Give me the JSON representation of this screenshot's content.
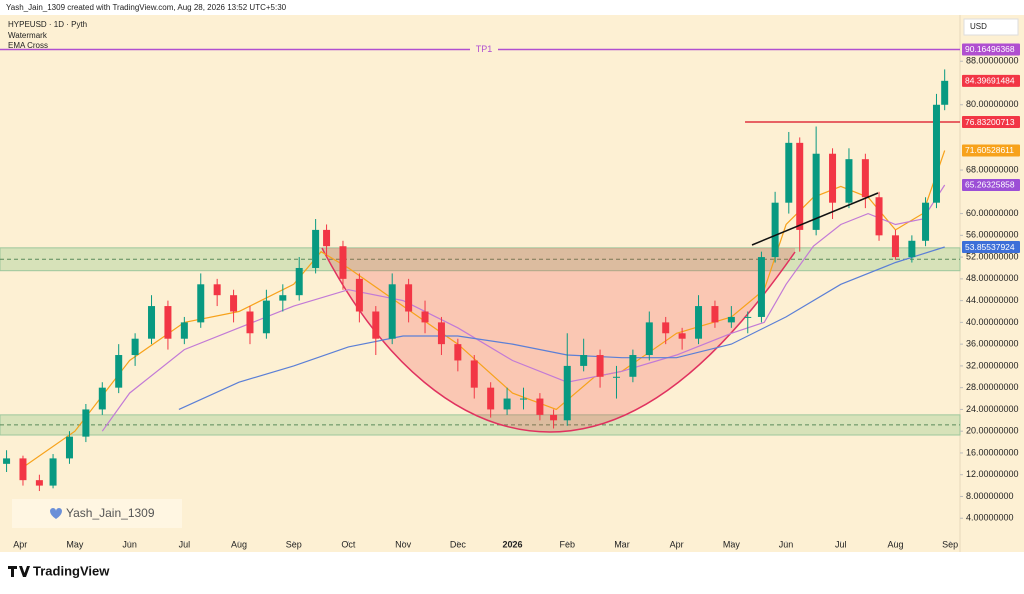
{
  "header": {
    "credit": "Yash_Jain_1309 created with TradingView.com, Aug 28, 2026 13:52 UTC+5:30",
    "symbol": "HYPEUSD · 1D · Pyth",
    "indicators": [
      "Watermark",
      "EMA Cross"
    ],
    "currency": "USD",
    "watermark": "Yash_Jain_1309",
    "brand": "TradingView"
  },
  "chart_data": {
    "type": "candlestick",
    "x": [
      -0.25,
      0.05,
      0.35,
      0.6,
      0.9,
      1.2,
      1.5,
      1.8,
      2.1,
      2.4,
      2.7,
      3.0,
      3.3,
      3.6,
      3.9,
      4.2,
      4.5,
      4.8,
      5.1,
      5.4,
      5.6,
      5.9,
      6.2,
      6.5,
      6.8,
      7.1,
      7.4,
      7.7,
      8.0,
      8.3,
      8.6,
      8.9,
      9.2,
      9.5,
      9.75,
      10.0,
      10.3,
      10.6,
      10.9,
      11.2,
      11.5,
      11.8,
      12.1,
      12.4,
      12.7,
      13.0,
      13.3,
      13.55,
      13.8,
      14.05,
      14.25,
      14.55,
      14.85,
      15.15,
      15.45,
      15.7,
      16.0,
      16.3,
      16.55,
      16.75,
      16.9
    ],
    "open": [
      14,
      15,
      11,
      10,
      15,
      19,
      24,
      28,
      34,
      37,
      43,
      37,
      40,
      47,
      45,
      42,
      38,
      44,
      45,
      50,
      57,
      54,
      48,
      42,
      37,
      47,
      42,
      40,
      36,
      33,
      28,
      24,
      26,
      26,
      23,
      22,
      32,
      34,
      30,
      30,
      34,
      40,
      38,
      37,
      43,
      40,
      41,
      41,
      52,
      62,
      73,
      57,
      71,
      62,
      70,
      63,
      56,
      52,
      55,
      62,
      80
    ],
    "high": [
      16.5,
      15.5,
      12,
      15.8,
      20,
      25,
      29,
      36,
      38,
      45,
      44,
      41,
      49,
      48,
      46,
      43,
      46,
      47,
      52,
      59,
      58,
      55,
      49,
      43,
      49,
      48,
      44,
      41,
      37,
      34,
      29,
      28,
      28,
      27,
      24,
      38,
      37,
      35,
      32,
      35,
      42,
      41,
      39,
      45,
      44,
      43,
      42,
      53,
      64,
      75,
      74,
      76,
      72,
      72,
      71,
      64,
      57,
      56,
      63,
      82,
      86.5
    ],
    "low": [
      12.5,
      10,
      9,
      9.5,
      14,
      18,
      23,
      27,
      32,
      36,
      35,
      36,
      39,
      43,
      40,
      36,
      37,
      42,
      44,
      49,
      52,
      46,
      40,
      34,
      36,
      40,
      38,
      34,
      31,
      26,
      22.5,
      23,
      24,
      22,
      20.5,
      21,
      31,
      28,
      26,
      29,
      33,
      36,
      35,
      36,
      39,
      39,
      38,
      40,
      51,
      60,
      53,
      56,
      59,
      61,
      61,
      55,
      51.5,
      51,
      54,
      61,
      79
    ],
    "close": [
      15,
      11,
      10,
      15,
      19,
      24,
      28,
      34,
      37,
      43,
      37,
      40,
      47,
      45,
      42,
      38,
      44,
      45,
      50,
      57,
      54,
      48,
      42,
      37,
      47,
      42,
      40,
      36,
      33,
      28,
      24,
      26,
      26,
      23,
      22,
      32,
      34,
      30,
      30,
      34,
      40,
      38,
      37,
      43,
      40,
      41,
      41,
      52,
      62,
      73,
      57,
      71,
      62,
      70,
      63,
      56,
      52,
      55,
      62,
      80,
      84.4
    ],
    "up_color": "#089981",
    "down_color": "#f23645",
    "lines": [
      {
        "color": "#f7a21b",
        "x": [
          0,
          1,
          2,
          3,
          4,
          5,
          5.5,
          6,
          7,
          8,
          9,
          9.8,
          10.5,
          11,
          12,
          13,
          13.6,
          14,
          14.5,
          15,
          15.5,
          16,
          16.5,
          16.9
        ],
        "values": [
          13,
          20,
          33,
          40,
          42,
          47,
          53,
          50,
          43,
          36,
          27,
          24,
          30,
          31,
          38,
          41,
          46,
          58,
          63,
          65,
          63,
          57,
          60,
          71.6
        ]
      },
      {
        "color": "#c27ad6",
        "x": [
          1.5,
          2,
          3,
          4,
          5,
          6,
          7,
          8,
          9,
          10,
          11,
          12,
          13,
          13.6,
          14,
          14.5,
          15,
          15.5,
          16,
          16.5,
          16.9
        ],
        "values": [
          20,
          27,
          35,
          39,
          43,
          46,
          44,
          39,
          33,
          29,
          31,
          34,
          38,
          40,
          47,
          54,
          58,
          60,
          58,
          59,
          65.26
        ]
      },
      {
        "color": "#5b7fd6",
        "x": [
          2.9,
          4,
          5,
          6,
          7,
          8,
          9,
          10,
          11,
          12,
          13,
          14,
          15,
          16,
          16.9
        ],
        "values": [
          24,
          29,
          32,
          35.5,
          37.5,
          37.5,
          36,
          34,
          33.5,
          33.5,
          36,
          41,
          47,
          51,
          53.86
        ]
      }
    ],
    "zones": [
      {
        "low": 49.5,
        "high": 53.7
      },
      {
        "low": 19.3,
        "high": 23
      }
    ],
    "tp_level": 90.16496368,
    "tp_label": "TP1",
    "tp_color": "#b04fd0",
    "resistance": {
      "value": 76.83200713,
      "from": 13.25,
      "color": "#e0323f"
    },
    "price_labels": [
      {
        "value": 90.16496368,
        "color": "#b04fd0"
      },
      {
        "value": 84.39691484,
        "color": "#f23645"
      },
      {
        "value": 76.83200713,
        "color": "#f23645"
      },
      {
        "value": 71.60528611,
        "color": "#f7a21b"
      },
      {
        "value": 65.26325858,
        "color": "#9c4fd6"
      },
      {
        "value": 53.85537924,
        "color": "#3d6fd8"
      }
    ],
    "xlim": [
      -0.37,
      17.18
    ],
    "xticks": [
      {
        "value": 0,
        "label": "Apr"
      },
      {
        "value": 1,
        "label": "May"
      },
      {
        "value": 2,
        "label": "Jun"
      },
      {
        "value": 3,
        "label": "Jul"
      },
      {
        "value": 4,
        "label": "Aug"
      },
      {
        "value": 5,
        "label": "Sep"
      },
      {
        "value": 6,
        "label": "Oct"
      },
      {
        "value": 7,
        "label": "Nov"
      },
      {
        "value": 8,
        "label": "Dec"
      },
      {
        "value": 9,
        "label": "2026"
      },
      {
        "value": 10,
        "label": "Feb"
      },
      {
        "value": 11,
        "label": "Mar"
      },
      {
        "value": 12,
        "label": "Apr"
      },
      {
        "value": 13,
        "label": "May"
      },
      {
        "value": 14,
        "label": "Jun"
      },
      {
        "value": 15,
        "label": "Jul"
      },
      {
        "value": 16,
        "label": "Aug"
      },
      {
        "value": 17,
        "label": "Sep"
      }
    ],
    "ylim": [
      0,
      96.5
    ],
    "yticks": [
      {
        "value": 4,
        "label": "4.00000000"
      },
      {
        "value": 8,
        "label": "8.00000000"
      },
      {
        "value": 12,
        "label": "12.00000000"
      },
      {
        "value": 16,
        "label": "16.00000000"
      },
      {
        "value": 20,
        "label": "20.00000000"
      },
      {
        "value": 24,
        "label": "24.00000000"
      },
      {
        "value": 28,
        "label": "28.00000000"
      },
      {
        "value": 32,
        "label": "32.00000000"
      },
      {
        "value": 36,
        "label": "36.00000000"
      },
      {
        "value": 40,
        "label": "40.00000000"
      },
      {
        "value": 44,
        "label": "44.00000000"
      },
      {
        "value": 48,
        "label": "48.00000000"
      },
      {
        "value": 52,
        "label": "52.00000000"
      },
      {
        "value": 56,
        "label": "56.00000000"
      },
      {
        "value": 60,
        "label": "60.00000000"
      },
      {
        "value": 68,
        "label": "68.00000000"
      },
      {
        "value": 80,
        "label": "80.00000000"
      },
      {
        "value": 88,
        "label": "88.00000000"
      }
    ]
  }
}
